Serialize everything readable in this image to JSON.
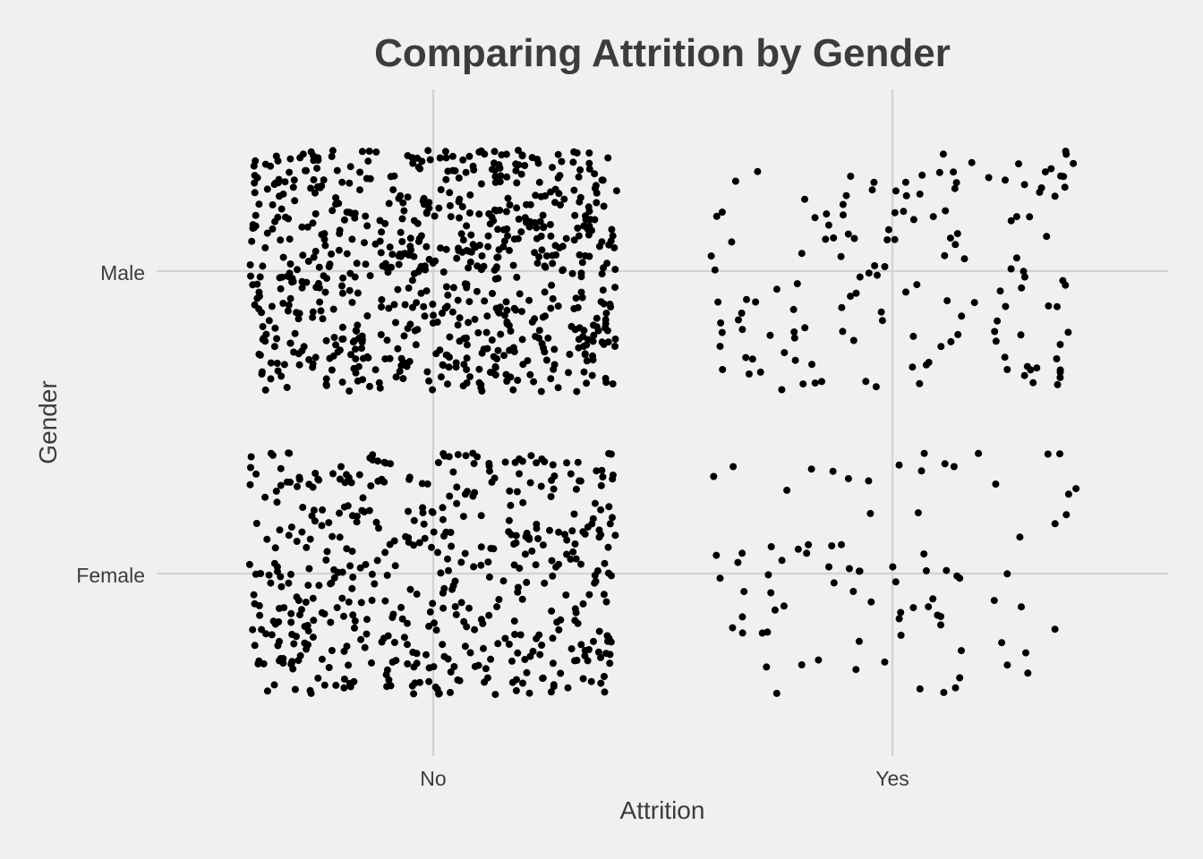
{
  "chart_data": {
    "type": "scatter",
    "title": "Comparing Attrition by Gender",
    "xlabel": "Attrition",
    "ylabel": "Gender",
    "x_categories": [
      "No",
      "Yes"
    ],
    "y_categories": [
      "Female",
      "Male"
    ],
    "jitter": {
      "x": 0.4,
      "y": 0.4
    },
    "grid": true,
    "legend": "none",
    "series": [
      {
        "x": "No",
        "y": "Male",
        "count": 732
      },
      {
        "x": "No",
        "y": "Female",
        "count": 501
      },
      {
        "x": "Yes",
        "y": "Male",
        "count": 150
      },
      {
        "x": "Yes",
        "y": "Female",
        "count": 87
      }
    ],
    "colors": {
      "background": "#f0f0f0",
      "grid": "#d2d2d2",
      "points": "#000000",
      "text": "#3c3c3c"
    }
  }
}
